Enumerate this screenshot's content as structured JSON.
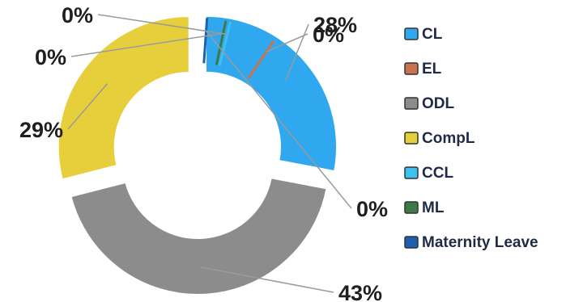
{
  "chart_data": {
    "type": "pie",
    "variant": "donut",
    "slices": [
      {
        "name": "CL",
        "value": 28,
        "label": "28%",
        "color": "#2fa8f0"
      },
      {
        "name": "EL",
        "value": 0,
        "label": "0%",
        "color": "#c8734f"
      },
      {
        "name": "ODL",
        "value": 43,
        "label": "43%",
        "color": "#8c8c8c"
      },
      {
        "name": "CompL",
        "value": 29,
        "label": "29%",
        "color": "#e7cf3c"
      },
      {
        "name": "CCL",
        "value": 0,
        "label": "0%",
        "color": "#3ec1f0"
      },
      {
        "name": "ML",
        "value": 0,
        "label": "0%",
        "color": "#3d7a45"
      },
      {
        "name": "Maternity Leave",
        "value": 0,
        "label": "0%",
        "color": "#1e5fb0"
      }
    ],
    "legend_position": "right"
  }
}
